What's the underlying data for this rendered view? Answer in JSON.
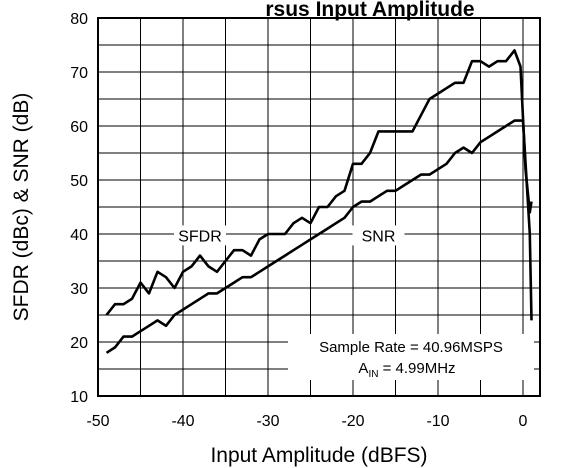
{
  "chart_data": {
    "type": "line",
    "title_fragment": "rsus Input Amplitude",
    "xlabel": "Input Amplitude (dBFS)",
    "ylabel": "SFDR (dBc) & SNR (dB)",
    "xlim": [
      -50,
      2
    ],
    "ylim": [
      10,
      80
    ],
    "grid": true,
    "xticks": [
      -50,
      -40,
      -30,
      -20,
      -10,
      0
    ],
    "yticks": [
      10,
      20,
      30,
      40,
      50,
      60,
      70,
      80
    ],
    "xtick_labels": [
      "-50",
      "-40",
      "-30",
      "-20",
      "-10",
      "0"
    ],
    "ytick_labels": [
      "10",
      "20",
      "30",
      "40",
      "50",
      "60",
      "70",
      "80"
    ],
    "series": [
      {
        "name": "SFDR",
        "color": "#000000",
        "x": [
          -49,
          -48,
          -47,
          -46,
          -45,
          -44,
          -43,
          -42,
          -41,
          -40,
          -39,
          -38,
          -37,
          -36,
          -35,
          -34,
          -33,
          -32,
          -31,
          -30,
          -29,
          -28,
          -27,
          -26,
          -25,
          -24,
          -23,
          -22,
          -21,
          -20,
          -19,
          -18,
          -17,
          -16,
          -15,
          -14,
          -13,
          -12,
          -11,
          -10,
          -9,
          -8,
          -7,
          -6,
          -5,
          -4,
          -3,
          -2,
          -1,
          -0.3,
          0.3,
          0.8,
          1
        ],
        "y": [
          25,
          27,
          27,
          28,
          31,
          29,
          33,
          32,
          30,
          33,
          34,
          36,
          34,
          33,
          35,
          37,
          37,
          36,
          39,
          40,
          40,
          40,
          42,
          43,
          42,
          45,
          45,
          47,
          48,
          53,
          53,
          55,
          59,
          59,
          59,
          59,
          59,
          62,
          65,
          66,
          67,
          68,
          68,
          72,
          72,
          71,
          72,
          72,
          74,
          71,
          52,
          44,
          46
        ]
      },
      {
        "name": "SNR",
        "color": "#000000",
        "x": [
          -49,
          -48,
          -47,
          -46,
          -45,
          -44,
          -43,
          -42,
          -41,
          -40,
          -39,
          -38,
          -37,
          -36,
          -35,
          -34,
          -33,
          -32,
          -31,
          -30,
          -29,
          -28,
          -27,
          -26,
          -25,
          -24,
          -23,
          -22,
          -21,
          -20,
          -19,
          -18,
          -17,
          -16,
          -15,
          -14,
          -13,
          -12,
          -11,
          -10,
          -9,
          -8,
          -7,
          -6,
          -5,
          -4,
          -3,
          -2,
          -1,
          0,
          0.8,
          1
        ],
        "y": [
          18,
          19,
          21,
          21,
          22,
          23,
          24,
          23,
          25,
          26,
          27,
          28,
          29,
          29,
          30,
          31,
          32,
          32,
          33,
          34,
          35,
          36,
          37,
          38,
          39,
          40,
          41,
          42,
          43,
          45,
          46,
          46,
          47,
          48,
          48,
          49,
          50,
          51,
          51,
          52,
          53,
          55,
          56,
          55,
          57,
          58,
          59,
          60,
          61,
          61,
          40,
          24
        ]
      }
    ],
    "series_labels": [
      {
        "text": "SFDR",
        "x": -38,
        "y": 39
      },
      {
        "text": "SNR",
        "x": -17,
        "y": 39
      }
    ],
    "annotations": [
      {
        "text": "Sample Rate = 40.96MSPS"
      },
      {
        "text_main": "A",
        "text_sub": "IN",
        "text_rest": " = 4.99MHz"
      }
    ]
  }
}
